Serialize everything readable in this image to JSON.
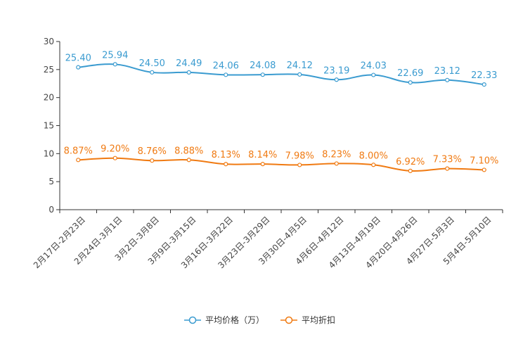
{
  "chart_data": {
    "type": "line",
    "categories": [
      "2月17日-2月23日",
      "2月24日-3月1日",
      "3月2日-3月8日",
      "3月9日-3月15日",
      "3月16日-3月22日",
      "3月23日-3月29日",
      "3月30日-4月5日",
      "4月6日-4月12日",
      "4月13日-4月19日",
      "4月20日-4月26日",
      "4月27日-5月3日",
      "5月4日-5月10日"
    ],
    "series": [
      {
        "name": "平均价格（万）",
        "color": "#3a9bd0",
        "values": [
          25.4,
          25.94,
          24.5,
          24.49,
          24.06,
          24.08,
          24.12,
          23.19,
          24.03,
          22.69,
          23.12,
          22.33
        ],
        "labels": [
          "25.40",
          "25.94",
          "24.50",
          "24.49",
          "24.06",
          "24.08",
          "24.12",
          "23.19",
          "24.03",
          "22.69",
          "23.12",
          "22.33"
        ]
      },
      {
        "name": "平均折扣",
        "color": "#f07a12",
        "values": [
          8.87,
          9.2,
          8.76,
          8.88,
          8.13,
          8.14,
          7.98,
          8.23,
          8.0,
          6.92,
          7.33,
          7.1
        ],
        "labels": [
          "8.87%",
          "9.20%",
          "8.76%",
          "8.88%",
          "8.13%",
          "8.14%",
          "7.98%",
          "8.23%",
          "8.00%",
          "6.92%",
          "7.33%",
          "7.10%"
        ]
      }
    ],
    "y_ticks": [
      "0",
      "5",
      "10",
      "15",
      "20",
      "25",
      "30"
    ],
    "ylim": [
      0,
      30
    ],
    "title": "",
    "xlabel": "",
    "ylabel": "",
    "legend_position": "bottom-center",
    "grid": false
  }
}
